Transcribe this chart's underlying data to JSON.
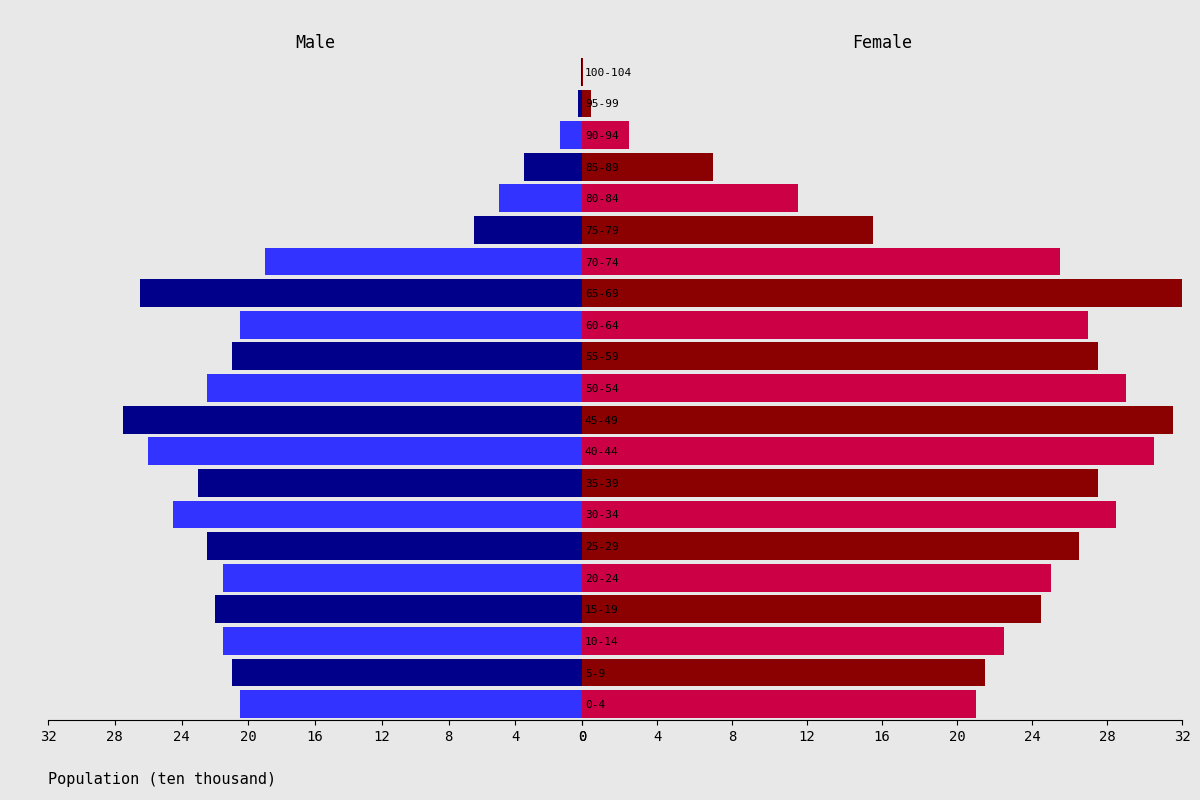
{
  "age_groups": [
    "100-104",
    "95-99",
    "90-94",
    "85-89",
    "80-84",
    "75-79",
    "70-74",
    "65-69",
    "60-64",
    "55-59",
    "50-54",
    "45-49",
    "40-44",
    "35-39",
    "30-34",
    "25-29",
    "20-24",
    "15-19",
    "10-14",
    "5-9",
    "0-4"
  ],
  "male": [
    0.05,
    0.25,
    1.3,
    3.5,
    5.0,
    6.5,
    19.0,
    26.5,
    20.5,
    21.0,
    22.5,
    27.5,
    26.0,
    23.0,
    24.5,
    22.5,
    21.5,
    22.0,
    21.5,
    21.0,
    20.5
  ],
  "female": [
    0.05,
    0.5,
    2.5,
    7.0,
    11.5,
    15.5,
    25.5,
    32.0,
    27.0,
    27.5,
    29.0,
    31.5,
    30.5,
    27.5,
    28.5,
    26.5,
    25.0,
    24.5,
    22.5,
    21.5,
    21.0
  ],
  "xlim": 32,
  "xlabel": "Population (ten thousand)",
  "male_label": "Male",
  "female_label": "Female",
  "bg_color": "#E8E8E8",
  "bar_height": 0.88,
  "male_dark": "#00008B",
  "male_light": "#3333FF",
  "female_dark": "#8B0000",
  "female_light": "#CC0044"
}
